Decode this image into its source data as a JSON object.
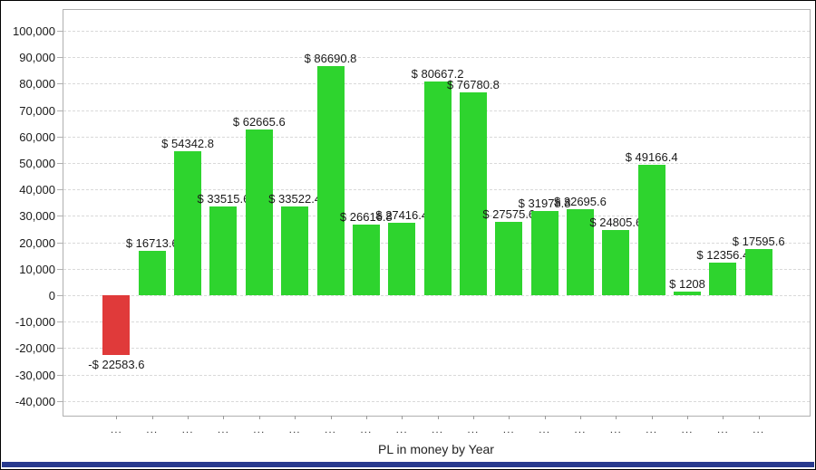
{
  "chart_data": {
    "type": "bar",
    "title": "PL in money by Year",
    "xlabel": "PL in money by Year",
    "ylabel": "",
    "categories": [
      "...",
      "...",
      "...",
      "...",
      "...",
      "...",
      "...",
      "...",
      "...",
      "...",
      "...",
      "...",
      "...",
      "...",
      "...",
      "...",
      "...",
      "...",
      "..."
    ],
    "values": [
      -22583.6,
      16713.6,
      54342.8,
      33515.6,
      62665.6,
      33522.4,
      86690.8,
      26616.8,
      27416.4,
      80667.2,
      76780.8,
      27575.6,
      31978.8,
      32695.6,
      24805.6,
      49166.4,
      1208,
      12356.4,
      17595.6
    ],
    "bar_labels": [
      "-$ 22583.6",
      "$ 16713.6",
      "$ 54342.8",
      "$ 33515.6",
      "$ 62665.6",
      "$ 33522.4",
      "$ 86690.8",
      "$ 26616.8",
      "$ 27416.4",
      "$ 80667.2",
      "$ 76780.8",
      "$ 27575.6",
      "$ 31978.8",
      "$ 32695.6",
      "$ 24805.6",
      "$ 49166.4",
      "$ 1208",
      "$ 12356.4",
      "$ 17595.6"
    ],
    "ylim": [
      -40000,
      100000
    ],
    "yticks": [
      100000,
      90000,
      80000,
      70000,
      60000,
      50000,
      40000,
      30000,
      20000,
      10000,
      0,
      -10000,
      -20000,
      -30000,
      -40000
    ],
    "ytick_labels": [
      "100,000",
      "90,000",
      "80,000",
      "70,000",
      "60,000",
      "50,000",
      "40,000",
      "30,000",
      "20,000",
      "10,000",
      "0",
      "-10,000",
      "-20,000",
      "-30,000",
      "-40,000"
    ],
    "grid": "horizontal-dashed",
    "legend": "none",
    "note": "bar value labels are partially hidden where adjacent taller bars overlap them"
  },
  "colors": {
    "positive_bar": "#2ed42e",
    "negative_bar": "#e03a3a",
    "gridline": "#d9d9d9",
    "axis_border": "#b0b0b0",
    "tick": "#999999",
    "text": "#1a1a1a",
    "bottom_accent": "#283a8e",
    "background": "#ffffff"
  }
}
